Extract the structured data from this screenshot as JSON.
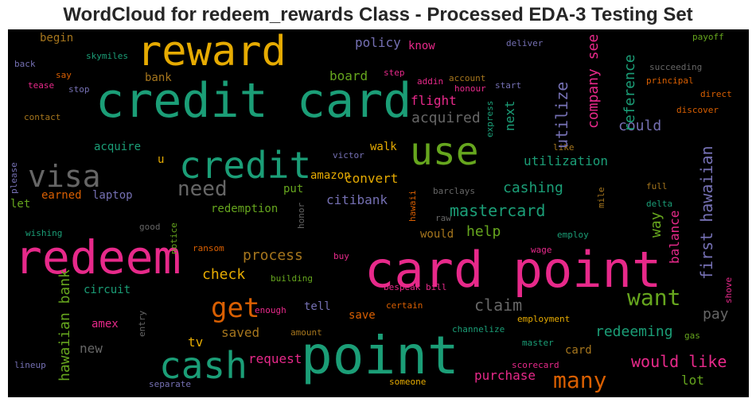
{
  "title": "WordCloud for redeem_rewards Class - Processed EDA-3 Testing Set",
  "colors": {
    "teal": "#1b9e77",
    "orange": "#d95f02",
    "purple": "#7570b3",
    "pink": "#e7298a",
    "green": "#66a61e",
    "yellow": "#e6ab02",
    "brown": "#a6761d",
    "gray": "#666666"
  },
  "words": [
    {
      "text": "credit card",
      "color": "#1b9e77"
    },
    {
      "text": "card point",
      "color": "#e7298a"
    },
    {
      "text": "point",
      "color": "#1b9e77"
    },
    {
      "text": "reward",
      "color": "#e6ab02"
    },
    {
      "text": "redeem",
      "color": "#e7298a"
    },
    {
      "text": "credit",
      "color": "#1b9e77"
    },
    {
      "text": "use",
      "color": "#66a61e"
    },
    {
      "text": "cash",
      "color": "#1b9e77"
    },
    {
      "text": "visa",
      "color": "#666666"
    },
    {
      "text": "get",
      "color": "#d95f02"
    },
    {
      "text": "need",
      "color": "#666666"
    },
    {
      "text": "want",
      "color": "#66a61e"
    },
    {
      "text": "many",
      "color": "#d95f02"
    },
    {
      "text": "first hawaiian",
      "color": "#7570b3"
    },
    {
      "text": "would like",
      "color": "#e7298a"
    },
    {
      "text": "mastercard",
      "color": "#1b9e77"
    },
    {
      "text": "claim",
      "color": "#666666"
    },
    {
      "text": "company see",
      "color": "#e7298a"
    },
    {
      "text": "reference",
      "color": "#1b9e77"
    },
    {
      "text": "utilize",
      "color": "#7570b3"
    },
    {
      "text": "hawaiian bank",
      "color": "#66a61e"
    },
    {
      "text": "redeeming",
      "color": "#1b9e77"
    },
    {
      "text": "process",
      "color": "#a6761d"
    },
    {
      "text": "acquired",
      "color": "#666666"
    },
    {
      "text": "flight",
      "color": "#e7298a"
    },
    {
      "text": "cashing",
      "color": "#1b9e77"
    },
    {
      "text": "could",
      "color": "#7570b3"
    },
    {
      "text": "way",
      "color": "#66a61e"
    },
    {
      "text": "balance",
      "color": "#e7298a"
    },
    {
      "text": "help",
      "color": "#66a61e"
    },
    {
      "text": "check",
      "color": "#e6ab02"
    },
    {
      "text": "request",
      "color": "#e7298a"
    },
    {
      "text": "purchase",
      "color": "#e7298a"
    },
    {
      "text": "pay",
      "color": "#666666"
    },
    {
      "text": "utilization",
      "color": "#1b9e77"
    },
    {
      "text": "convert",
      "color": "#e6ab02"
    },
    {
      "text": "citibank",
      "color": "#7570b3"
    },
    {
      "text": "next",
      "color": "#1b9e77"
    },
    {
      "text": "board",
      "color": "#66a61e"
    },
    {
      "text": "policy",
      "color": "#7570b3"
    },
    {
      "text": "know",
      "color": "#e7298a"
    },
    {
      "text": "begin",
      "color": "#a6761d"
    },
    {
      "text": "bank",
      "color": "#a6761d"
    },
    {
      "text": "acquire",
      "color": "#1b9e77"
    },
    {
      "text": "walk",
      "color": "#e6ab02"
    },
    {
      "text": "amazon",
      "color": "#e6ab02"
    },
    {
      "text": "put",
      "color": "#66a61e"
    },
    {
      "text": "redemption",
      "color": "#66a61e"
    },
    {
      "text": "laptop",
      "color": "#7570b3"
    },
    {
      "text": "earned",
      "color": "#d95f02"
    },
    {
      "text": "let",
      "color": "#66a61e"
    },
    {
      "text": "u",
      "color": "#e6ab02"
    },
    {
      "text": "would",
      "color": "#a6761d"
    },
    {
      "text": "circuit",
      "color": "#1b9e77"
    },
    {
      "text": "amex",
      "color": "#e7298a"
    },
    {
      "text": "new",
      "color": "#666666"
    },
    {
      "text": "tv",
      "color": "#e6ab02"
    },
    {
      "text": "saved",
      "color": "#a6761d"
    },
    {
      "text": "tell",
      "color": "#7570b3"
    },
    {
      "text": "save",
      "color": "#d95f02"
    },
    {
      "text": "card",
      "color": "#a6761d"
    },
    {
      "text": "lot",
      "color": "#66a61e"
    },
    {
      "text": "skymiles",
      "color": "#1b9e77"
    },
    {
      "text": "back",
      "color": "#7570b3"
    },
    {
      "text": "say",
      "color": "#d95f02"
    },
    {
      "text": "tease",
      "color": "#e7298a"
    },
    {
      "text": "stop",
      "color": "#7570b3"
    },
    {
      "text": "contact",
      "color": "#a6761d"
    },
    {
      "text": "step",
      "color": "#e7298a"
    },
    {
      "text": "addin",
      "color": "#e7298a"
    },
    {
      "text": "account",
      "color": "#a6761d"
    },
    {
      "text": "honour",
      "color": "#e7298a"
    },
    {
      "text": "start",
      "color": "#7570b3"
    },
    {
      "text": "deliver",
      "color": "#7570b3"
    },
    {
      "text": "payoff",
      "color": "#66a61e"
    },
    {
      "text": "succeeding",
      "color": "#666666"
    },
    {
      "text": "principal",
      "color": "#d95f02"
    },
    {
      "text": "direct",
      "color": "#d95f02"
    },
    {
      "text": "discover",
      "color": "#d95f02"
    },
    {
      "text": "express",
      "color": "#1b9e77"
    },
    {
      "text": "victor",
      "color": "#7570b3"
    },
    {
      "text": "like",
      "color": "#a6761d"
    },
    {
      "text": "barclays",
      "color": "#666666"
    },
    {
      "text": "full",
      "color": "#a6761d"
    },
    {
      "text": "mile",
      "color": "#a6761d"
    },
    {
      "text": "delta",
      "color": "#1b9e77"
    },
    {
      "text": "hawaii",
      "color": "#d95f02"
    },
    {
      "text": "raw",
      "color": "#666666"
    },
    {
      "text": "honor",
      "color": "#666666"
    },
    {
      "text": "please",
      "color": "#7570b3"
    },
    {
      "text": "good",
      "color": "#666666"
    },
    {
      "text": "wishing",
      "color": "#1b9e77"
    },
    {
      "text": "notice",
      "color": "#66a61e"
    },
    {
      "text": "ransom",
      "color": "#d95f02"
    },
    {
      "text": "buy",
      "color": "#e7298a"
    },
    {
      "text": "wage",
      "color": "#e7298a"
    },
    {
      "text": "employ",
      "color": "#1b9e77"
    },
    {
      "text": "building",
      "color": "#66a61e"
    },
    {
      "text": "bespeak bill",
      "color": "#e7298a"
    },
    {
      "text": "shove",
      "color": "#e7298a"
    },
    {
      "text": "enough",
      "color": "#e7298a"
    },
    {
      "text": "certain",
      "color": "#d95f02"
    },
    {
      "text": "employment",
      "color": "#e6ab02"
    },
    {
      "text": "entry",
      "color": "#666666"
    },
    {
      "text": "amount",
      "color": "#a6761d"
    },
    {
      "text": "channelize",
      "color": "#1b9e77"
    },
    {
      "text": "gas",
      "color": "#66a61e"
    },
    {
      "text": "master",
      "color": "#1b9e77"
    },
    {
      "text": "lineup",
      "color": "#7570b3"
    },
    {
      "text": "separate",
      "color": "#7570b3"
    },
    {
      "text": "scorecard",
      "color": "#e7298a"
    },
    {
      "text": "someone",
      "color": "#e6ab02"
    }
  ]
}
